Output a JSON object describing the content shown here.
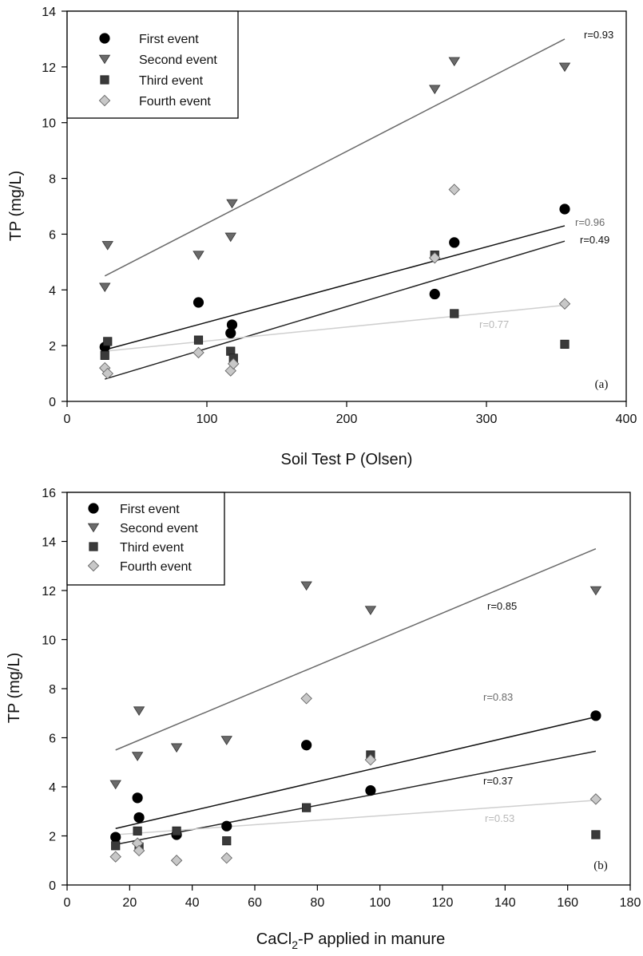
{
  "chart_data": [
    {
      "type": "scatter",
      "panel_label": "(a)",
      "xlabel": "Soil Test P (Olsen)",
      "ylabel": "TP (mg/L)",
      "xlim": [
        0,
        400
      ],
      "ylim": [
        0,
        14
      ],
      "xticks": [
        0,
        100,
        200,
        300,
        400
      ],
      "yticks": [
        0,
        2,
        4,
        6,
        8,
        10,
        12,
        14
      ],
      "legend_position": "top-left",
      "series": [
        {
          "name": "First event",
          "marker": "circle",
          "color": "#000000",
          "points": [
            [
              27,
              1.95
            ],
            [
              94,
              3.55
            ],
            [
              117,
              2.45
            ],
            [
              118,
              2.75
            ],
            [
              263,
              3.85
            ],
            [
              277,
              5.7
            ],
            [
              356,
              6.9
            ]
          ],
          "fit": {
            "x": [
              27,
              356
            ],
            "y": [
              1.85,
              6.3
            ]
          },
          "r_label": "r=0.93",
          "line_color": "#111111"
        },
        {
          "name": "Second event",
          "marker": "triangle-down",
          "color": "#6a6a6a",
          "points": [
            [
              27,
              4.1
            ],
            [
              29,
              5.6
            ],
            [
              94,
              5.25
            ],
            [
              117,
              5.9
            ],
            [
              118,
              7.1
            ],
            [
              263,
              11.2
            ],
            [
              277,
              12.2
            ],
            [
              356,
              12.0
            ]
          ],
          "fit": {
            "x": [
              27,
              356
            ],
            "y": [
              4.5,
              13.0
            ]
          },
          "r_label": "r=0.96",
          "line_color": "#6a6a6a"
        },
        {
          "name": "Third event",
          "marker": "square",
          "color": "#3a3a3a",
          "points": [
            [
              27,
              1.65
            ],
            [
              29,
              2.15
            ],
            [
              94,
              2.2
            ],
            [
              117,
              1.8
            ],
            [
              119,
              1.55
            ],
            [
              263,
              5.25
            ],
            [
              277,
              3.15
            ],
            [
              356,
              2.05
            ]
          ],
          "fit": {
            "x": [
              27,
              356
            ],
            "y": [
              0.8,
              5.75
            ]
          },
          "r_label": "r=0.49",
          "line_color": "#222222"
        },
        {
          "name": "Fourth event",
          "marker": "diamond",
          "color": "#c8c8c8",
          "points": [
            [
              27,
              1.2
            ],
            [
              29,
              1.0
            ],
            [
              94,
              1.75
            ],
            [
              117,
              1.1
            ],
            [
              119,
              1.35
            ],
            [
              263,
              5.15
            ],
            [
              277,
              7.6
            ],
            [
              356,
              3.5
            ]
          ],
          "fit": {
            "x": [
              27,
              356
            ],
            "y": [
              1.8,
              3.45
            ]
          },
          "r_label": "r=0.77",
          "line_color": "#cfcfcf"
        }
      ]
    },
    {
      "type": "scatter",
      "panel_label": "(b)",
      "xlabel": "CaCl2-P applied in manure",
      "ylabel": "TP (mg/L)",
      "xlim": [
        0,
        180
      ],
      "ylim": [
        0,
        16
      ],
      "xticks": [
        0,
        20,
        40,
        60,
        80,
        100,
        120,
        140,
        160,
        180
      ],
      "yticks": [
        0,
        2,
        4,
        6,
        8,
        10,
        12,
        14,
        16
      ],
      "legend_position": "top-left",
      "series": [
        {
          "name": "First event",
          "marker": "circle",
          "color": "#000000",
          "points": [
            [
              15.5,
              1.95
            ],
            [
              22.5,
              3.55
            ],
            [
              23,
              2.75
            ],
            [
              35,
              2.05
            ],
            [
              51,
              2.4
            ],
            [
              76.5,
              5.7
            ],
            [
              97,
              3.85
            ],
            [
              169,
              6.9
            ]
          ],
          "fit": {
            "x": [
              15.5,
              169
            ],
            "y": [
              2.3,
              6.85
            ]
          },
          "r_label": "r=0.85",
          "line_color": "#111111"
        },
        {
          "name": "Second event",
          "marker": "triangle-down",
          "color": "#6a6a6a",
          "points": [
            [
              15.5,
              4.1
            ],
            [
              22.5,
              5.25
            ],
            [
              23,
              7.1
            ],
            [
              35,
              5.6
            ],
            [
              51,
              5.9
            ],
            [
              76.5,
              12.2
            ],
            [
              97,
              11.2
            ],
            [
              169,
              12.0
            ]
          ],
          "fit": {
            "x": [
              15.5,
              169
            ],
            "y": [
              5.5,
              13.7
            ]
          },
          "r_label": "r=0.83",
          "line_color": "#6a6a6a"
        },
        {
          "name": "Third event",
          "marker": "square",
          "color": "#3a3a3a",
          "points": [
            [
              15.5,
              1.6
            ],
            [
              22.5,
              2.2
            ],
            [
              23,
              1.55
            ],
            [
              35,
              2.2
            ],
            [
              51,
              1.8
            ],
            [
              76.5,
              3.15
            ],
            [
              97,
              5.3
            ],
            [
              169,
              2.05
            ]
          ],
          "fit": {
            "x": [
              15.5,
              169
            ],
            "y": [
              1.65,
              5.45
            ]
          },
          "r_label": "r=0.37",
          "line_color": "#222222"
        },
        {
          "name": "Fourth event",
          "marker": "diamond",
          "color": "#c8c8c8",
          "points": [
            [
              15.5,
              1.15
            ],
            [
              22.5,
              1.7
            ],
            [
              23,
              1.4
            ],
            [
              35,
              1.0
            ],
            [
              51,
              1.1
            ],
            [
              76.5,
              7.6
            ],
            [
              97,
              5.1
            ],
            [
              169,
              3.5
            ]
          ],
          "fit": {
            "x": [
              15.5,
              169
            ],
            "y": [
              2.05,
              3.45
            ]
          },
          "r_label": "r=0.53",
          "line_color": "#cfcfcf"
        }
      ]
    }
  ]
}
